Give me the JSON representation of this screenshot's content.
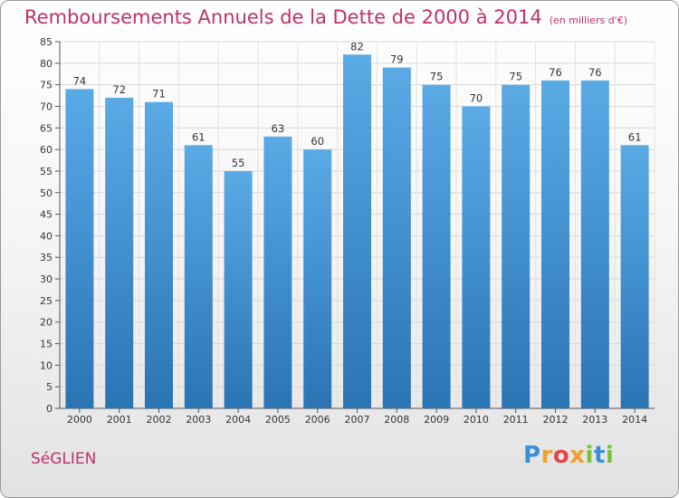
{
  "header": {
    "title": "Remboursements Annuels de la Dette de 2000 à 2014",
    "unit": "(en milliers d'€)"
  },
  "footer": {
    "town": "SéGLIEN",
    "logo": "Proxiti"
  },
  "colors": {
    "title": "#c0306a",
    "bar_top": "#5aaae6",
    "bar_bottom": "#2a74b4"
  },
  "chart_data": {
    "type": "bar",
    "title": "Remboursements Annuels de la Dette de 2000 à 2014",
    "subtitle": "(en milliers d'€)",
    "xlabel": "",
    "ylabel": "",
    "categories": [
      "2000",
      "2001",
      "2002",
      "2003",
      "2004",
      "2005",
      "2006",
      "2007",
      "2008",
      "2009",
      "2010",
      "2011",
      "2012",
      "2013",
      "2014"
    ],
    "values": [
      74,
      72,
      71,
      61,
      55,
      63,
      60,
      82,
      79,
      75,
      70,
      75,
      76,
      76,
      61
    ],
    "ylim": [
      0,
      85
    ],
    "yticks": [
      "0",
      "5",
      "10",
      "15",
      "20",
      "25",
      "30",
      "35",
      "40",
      "45",
      "50",
      "55",
      "60",
      "65",
      "70",
      "75",
      "80",
      "85"
    ],
    "grid": true
  }
}
